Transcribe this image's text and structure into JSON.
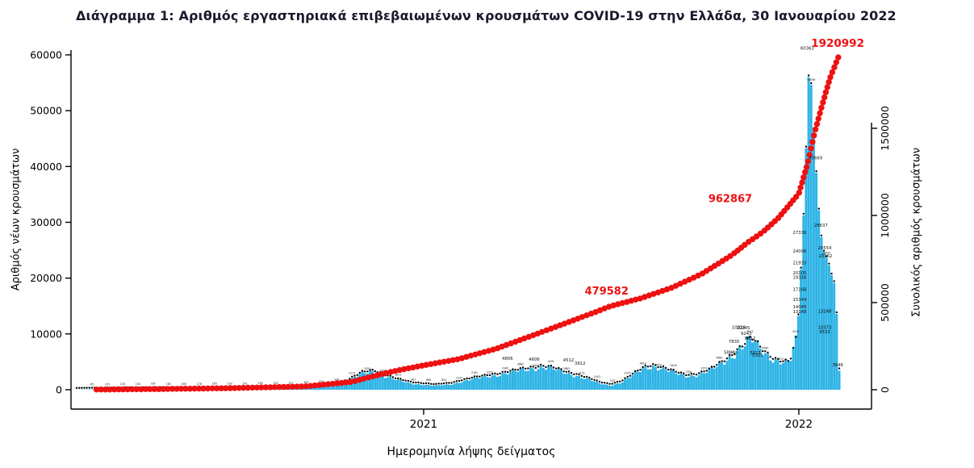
{
  "title": "Διάγραμμα 1: Αριθμός εργαστηριακά επιβεβαιωμένων κρουσμάτων COVID-19 στην Ελλάδα, 30 Ιανουαρίου 2022",
  "colors": {
    "bars": "#2fb4e6",
    "cumulative": "#ee1111",
    "dots": "#000000",
    "axis": "#000000",
    "title_text": "#1a1a2e"
  },
  "chart_data": {
    "type": "combo",
    "title": "Διάγραμμα 1: Αριθμός εργαστηριακά επιβεβαιωμένων κρουσμάτων COVID-19 στην Ελλάδα, 30 Ιανουαρίου 2022",
    "x_axis": {
      "label": "Ημερομηνία λήψης δείγματος",
      "ticks": [
        {
          "label": "2021",
          "t": 0.455
        },
        {
          "label": "2022",
          "t": 0.947
        }
      ]
    },
    "left_axis": {
      "label": "Αριθμός νέων κρουσμάτων",
      "range": [
        0,
        60000
      ],
      "ticks": [
        0,
        10000,
        20000,
        30000,
        40000,
        50000,
        60000
      ]
    },
    "right_axis": {
      "label": "Συνολικός αριθμός κρουσμάτων",
      "range": [
        0,
        1966000
      ],
      "ticks": [
        0,
        500000,
        1000000,
        1500000
      ]
    },
    "series": [
      {
        "name": "daily_new_cases",
        "type": "bar",
        "color": "#2fb4e6",
        "points": [
          [
            0,
            30
          ],
          [
            0.05,
            120
          ],
          [
            0.1,
            180
          ],
          [
            0.15,
            160
          ],
          [
            0.2,
            220
          ],
          [
            0.25,
            280
          ],
          [
            0.3,
            380
          ],
          [
            0.33,
            650
          ],
          [
            0.355,
            1500
          ],
          [
            0.375,
            2900
          ],
          [
            0.39,
            3300
          ],
          [
            0.405,
            2400
          ],
          [
            0.42,
            1700
          ],
          [
            0.44,
            1100
          ],
          [
            0.455,
            900
          ],
          [
            0.47,
            700
          ],
          [
            0.49,
            950
          ],
          [
            0.51,
            1650
          ],
          [
            0.53,
            2150
          ],
          [
            0.55,
            2650
          ],
          [
            0.57,
            3100
          ],
          [
            0.585,
            3500
          ],
          [
            0.6,
            3900
          ],
          [
            0.61,
            4100
          ],
          [
            0.625,
            3700
          ],
          [
            0.64,
            3050
          ],
          [
            0.655,
            2600
          ],
          [
            0.67,
            1900
          ],
          [
            0.685,
            1150
          ],
          [
            0.7,
            750
          ],
          [
            0.715,
            1350
          ],
          [
            0.73,
            2600
          ],
          [
            0.745,
            3900
          ],
          [
            0.755,
            4300
          ],
          [
            0.77,
            3700
          ],
          [
            0.785,
            2950
          ],
          [
            0.8,
            2450
          ],
          [
            0.815,
            2650
          ],
          [
            0.83,
            3350
          ],
          [
            0.845,
            4650
          ],
          [
            0.86,
            6200
          ],
          [
            0.875,
            7900
          ],
          [
            0.885,
            9000
          ],
          [
            0.895,
            7600
          ],
          [
            0.905,
            6400
          ],
          [
            0.915,
            5400
          ],
          [
            0.925,
            4850
          ],
          [
            0.935,
            4700
          ],
          [
            0.945,
            9500
          ],
          [
            0.952,
            27000
          ],
          [
            0.957,
            45000
          ],
          [
            0.961,
            60363
          ],
          [
            0.965,
            50000
          ],
          [
            0.969,
            40669
          ],
          [
            0.975,
            28637
          ],
          [
            0.98,
            24554
          ],
          [
            0.985,
            23162
          ],
          [
            0.99,
            20500
          ],
          [
            0.995,
            18500
          ],
          [
            1,
            3646
          ]
        ]
      },
      {
        "name": "cumulative_cases",
        "type": "line-dots",
        "color": "#ee1111",
        "points": [
          [
            0,
            0
          ],
          [
            0.1,
            3500
          ],
          [
            0.2,
            9000
          ],
          [
            0.3,
            19000
          ],
          [
            0.36,
            45000
          ],
          [
            0.4,
            90000
          ],
          [
            0.42,
            110000
          ],
          [
            0.455,
            140000
          ],
          [
            0.5,
            175000
          ],
          [
            0.55,
            235000
          ],
          [
            0.6,
            315000
          ],
          [
            0.64,
            380000
          ],
          [
            0.68,
            445000
          ],
          [
            0.7,
            479582
          ],
          [
            0.74,
            525000
          ],
          [
            0.78,
            585000
          ],
          [
            0.82,
            665000
          ],
          [
            0.86,
            775000
          ],
          [
            0.88,
            845000
          ],
          [
            0.9,
            905000
          ],
          [
            0.92,
            985000
          ],
          [
            0.947,
            1125000
          ],
          [
            0.958,
            1290000
          ],
          [
            0.968,
            1480000
          ],
          [
            0.978,
            1640000
          ],
          [
            0.988,
            1790000
          ],
          [
            1,
            1920992
          ]
        ]
      }
    ],
    "annotations": {
      "red_milestones": [
        {
          "text": "479582",
          "t": 0.73,
          "at_value": 510000
        },
        {
          "text": "962867",
          "t": 0.89,
          "at_value": 1040000
        },
        {
          "text": "1920992",
          "t": 0.998,
          "at_value": 1920992
        }
      ],
      "bar_labels": [
        {
          "text": "4806",
          "t": 0.565
        },
        {
          "text": "4606",
          "t": 0.6
        },
        {
          "text": "4512",
          "t": 0.645
        },
        {
          "text": "3912",
          "t": 0.66
        },
        {
          "text": "5884",
          "t": 0.856
        },
        {
          "text": "7835",
          "t": 0.862
        },
        {
          "text": "10324",
          "t": 0.868
        },
        {
          "text": "10245",
          "t": 0.874
        },
        {
          "text": "9243",
          "t": 0.878
        },
        {
          "text": "8352",
          "t": 0.883
        },
        {
          "text": "5815",
          "t": 0.89
        },
        {
          "text": "5315",
          "t": 0.893
        },
        {
          "text": "27336",
          "t": 0.948
        },
        {
          "text": "24006",
          "t": 0.948
        },
        {
          "text": "21933",
          "t": 0.948
        },
        {
          "text": "20105",
          "t": 0.948
        },
        {
          "text": "19316",
          "t": 0.948
        },
        {
          "text": "17168",
          "t": 0.948
        },
        {
          "text": "15344",
          "t": 0.948
        },
        {
          "text": "14046",
          "t": 0.948
        },
        {
          "text": "13148",
          "t": 0.948
        },
        {
          "text": "60363",
          "t": 0.958
        },
        {
          "text": "40669",
          "t": 0.969
        },
        {
          "text": "28637",
          "t": 0.976
        },
        {
          "text": "24554",
          "t": 0.981
        },
        {
          "text": "23162",
          "t": 0.982
        },
        {
          "text": "13248",
          "t": 0.981
        },
        {
          "text": "10373",
          "t": 0.981
        },
        {
          "text": "9533",
          "t": 0.981
        },
        {
          "text": "3646",
          "t": 0.998
        }
      ]
    },
    "layout": {
      "grid": false,
      "legend": "none"
    }
  }
}
